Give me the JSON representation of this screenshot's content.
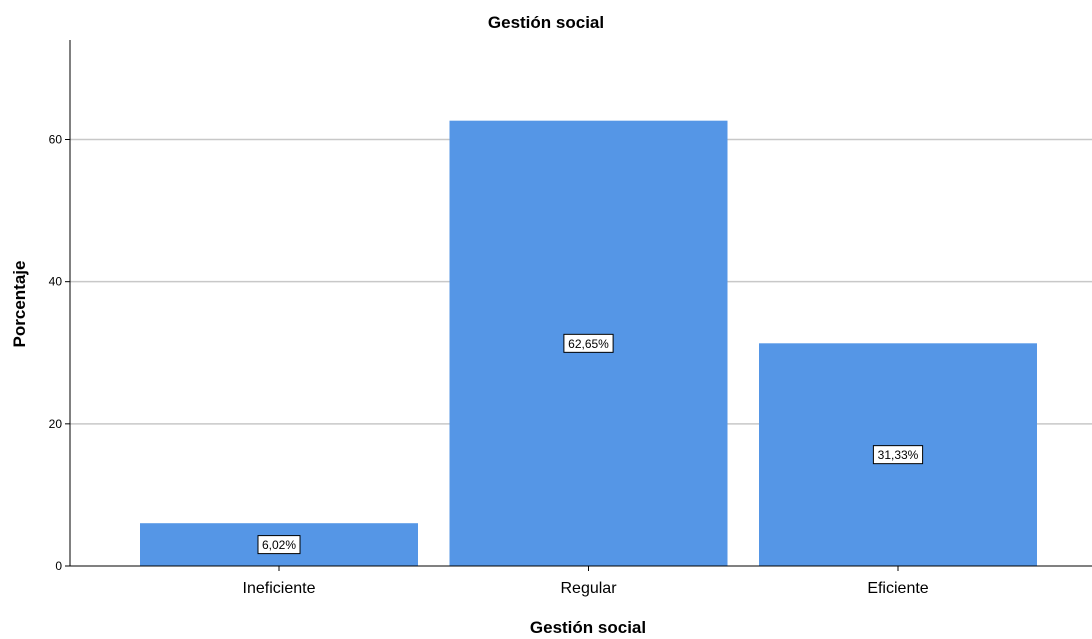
{
  "chart_data": {
    "type": "bar",
    "title": "Gestión social",
    "xlabel": "Gestión social",
    "ylabel": "Porcentaje",
    "categories": [
      "Ineficiente",
      "Regular",
      "Eficiente"
    ],
    "values": [
      6.02,
      62.65,
      31.33
    ],
    "data_labels": [
      "6,02%",
      "62,65%",
      "31,33%"
    ],
    "yticks": [
      0,
      20,
      40,
      60
    ],
    "ylim": [
      0,
      74
    ],
    "grid": true,
    "bar_color": "#5596e6",
    "grid_color": "#c8c8c8"
  }
}
